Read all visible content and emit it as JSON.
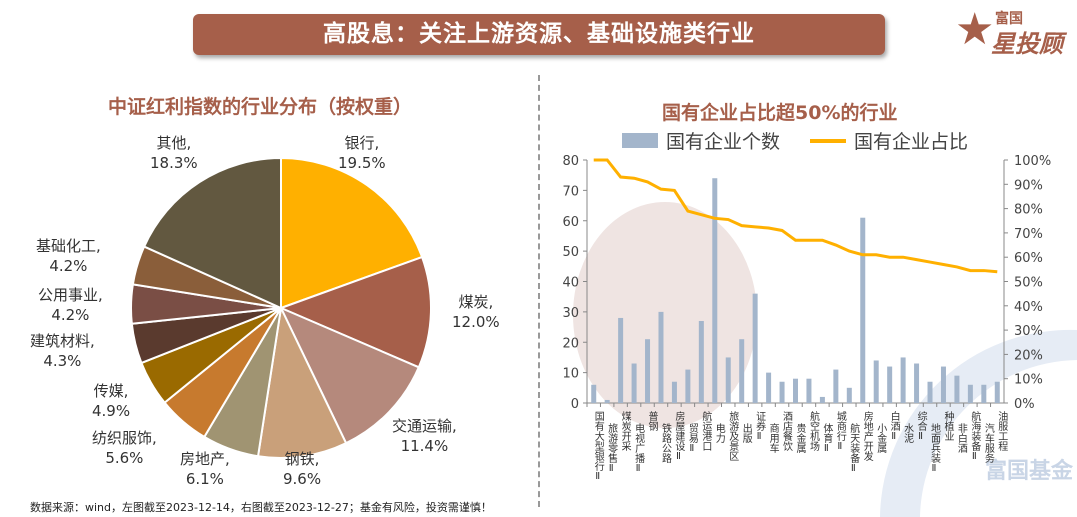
{
  "header": {
    "title": "高股息：关注上游资源、基础设施类行业",
    "logo_top": "富国",
    "logo_main": "星投顾"
  },
  "footer": "数据来源：wind，左图截至2023-12-14，右图截至2023-12-27；基金有风险，投资需谨慎！",
  "watermark": "富国基金",
  "chart_data": [
    {
      "type": "pie",
      "title": "中证红利指数的行业分布（按权重）",
      "slices": [
        {
          "label": "银行,",
          "value": 19.5,
          "text": "19.5%",
          "color": "#FFB000"
        },
        {
          "label": "煤炭,",
          "value": 12.0,
          "text": "12.0%",
          "color": "#A65F4A"
        },
        {
          "label": "交通运输,",
          "value": 11.4,
          "text": "11.4%",
          "color": "#B5897C"
        },
        {
          "label": "钢铁,",
          "value": 9.6,
          "text": "9.6%",
          "color": "#C9A07A"
        },
        {
          "label": "房地产,",
          "value": 6.1,
          "text": "6.1%",
          "color": "#A09472"
        },
        {
          "label": "纺织服饰,",
          "value": 5.6,
          "text": "5.6%",
          "color": "#C77A2E"
        },
        {
          "label": "传媒,",
          "value": 4.9,
          "text": "4.9%",
          "color": "#9A6A00"
        },
        {
          "label": "建筑材料,",
          "value": 4.3,
          "text": "4.3%",
          "color": "#5A3A2E"
        },
        {
          "label": "公用事业,",
          "value": 4.2,
          "text": "4.2%",
          "color": "#7A4E45"
        },
        {
          "label": "基础化工,",
          "value": 4.2,
          "text": "4.2%",
          "color": "#8A5E3A"
        },
        {
          "label": "其他,",
          "value": 18.3,
          "text": "18.3%",
          "color": "#625840"
        }
      ]
    },
    {
      "type": "bar+line",
      "title": "国有企业占比超50%的行业",
      "legend": [
        "国有企业个数",
        "国有企业占比"
      ],
      "categories": [
        "国有大型银行Ⅱ",
        "旅游零售Ⅱ",
        "煤炭开采",
        "电视广播Ⅱ",
        "普钢",
        "铁路公路",
        "房屋建设Ⅱ",
        "贸易Ⅱ",
        "航运港口",
        "电力",
        "旅游及景区",
        "出版",
        "证券Ⅱ",
        "商用车",
        "酒店餐饮",
        "贵金属",
        "航空机场",
        "体育Ⅱ",
        "城商行Ⅱ",
        "航天装备Ⅱ",
        "房地产开发",
        "小金属",
        "白酒Ⅱ",
        "水泥",
        "综合Ⅱ",
        "地面兵装Ⅱ",
        "种植业",
        "非白酒",
        "航海装备Ⅱ",
        "汽车服务",
        "油服工程"
      ],
      "bar_values": [
        6,
        1,
        28,
        13,
        21,
        30,
        7,
        11,
        27,
        74,
        15,
        21,
        36,
        10,
        7,
        8,
        8,
        2,
        11,
        5,
        61,
        14,
        12,
        15,
        13,
        7,
        12,
        9,
        6,
        6,
        7
      ],
      "line_values": [
        100,
        100,
        93,
        92.5,
        91,
        88,
        87.5,
        79,
        77.5,
        76,
        75.5,
        73,
        72.5,
        72,
        71,
        67,
        67,
        67,
        65,
        62.5,
        61,
        61,
        60,
        60,
        59,
        58,
        57,
        56,
        54.5,
        54.5,
        54
      ],
      "y_left": {
        "min": 0,
        "max": 80,
        "ticks": [
          "0",
          "10",
          "20",
          "30",
          "40",
          "50",
          "60",
          "70",
          "80"
        ]
      },
      "y_right": {
        "min": 0,
        "max": 100,
        "ticks": [
          "0%",
          "10%",
          "20%",
          "30%",
          "40%",
          "50%",
          "60%",
          "70%",
          "80%",
          "90%",
          "100%"
        ]
      },
      "colors": {
        "bar": "#A3B5CB",
        "line": "#FFB000"
      }
    }
  ]
}
